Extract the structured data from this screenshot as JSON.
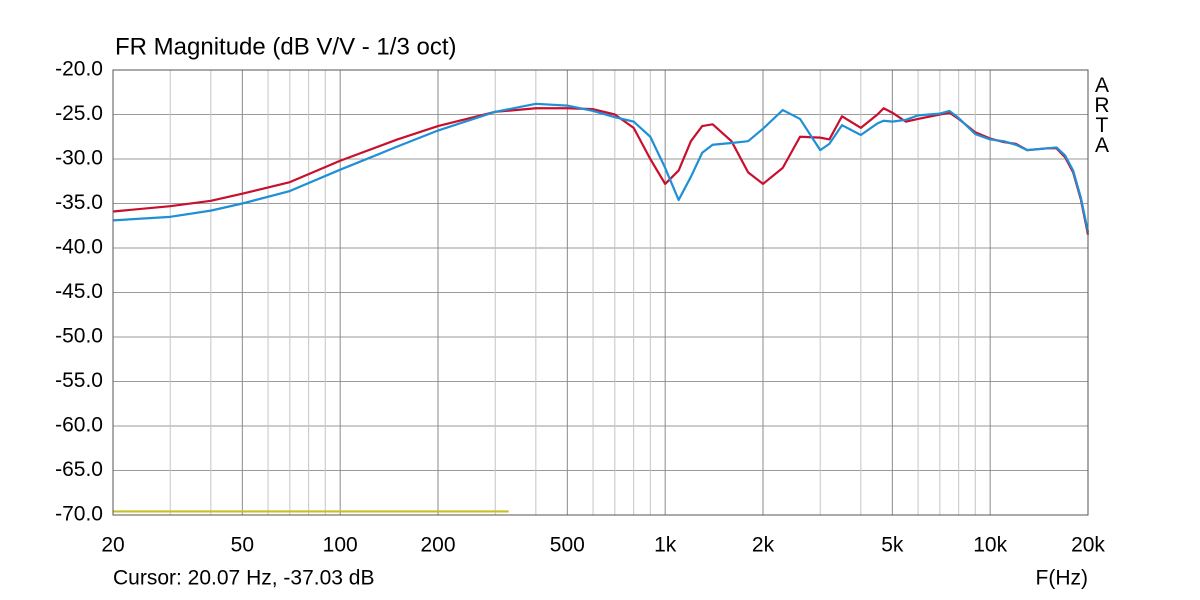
{
  "chart_data": {
    "type": "line",
    "title": "FR Magnitude (dB V/V - 1/3 oct)",
    "brand": "ARTA",
    "cursor": "Cursor: 20.07 Hz, -37.03 dB",
    "x_label": "F(Hz)",
    "log_x": true,
    "grid": true,
    "xlim": [
      20,
      20000
    ],
    "xticks": [
      20,
      50,
      100,
      200,
      500,
      {
        "value": 1000,
        "label": "1k"
      },
      {
        "value": 2000,
        "label": "2k"
      },
      {
        "value": 5000,
        "label": "5k"
      },
      {
        "value": 10000,
        "label": "10k"
      },
      {
        "value": 20000,
        "label": "20k"
      }
    ],
    "xgrid_minor": [
      30,
      40,
      60,
      70,
      80,
      90,
      300,
      400,
      600,
      700,
      800,
      900,
      3000,
      4000,
      6000,
      7000,
      8000,
      9000
    ],
    "ylim": [
      -70,
      -20
    ],
    "yticks": [
      {
        "value": -20,
        "label": "-20.0"
      },
      {
        "value": -25,
        "label": "-25.0"
      },
      {
        "value": -30,
        "label": "-30.0"
      },
      {
        "value": -35,
        "label": "-35.0"
      },
      {
        "value": -40,
        "label": "-40.0"
      },
      {
        "value": -45,
        "label": "-45.0"
      },
      {
        "value": -50,
        "label": "-50.0"
      },
      {
        "value": -55,
        "label": "-55.0"
      },
      {
        "value": -60,
        "label": "-60.0"
      },
      {
        "value": -65,
        "label": "-65.0"
      },
      {
        "value": -70,
        "label": "-70.0"
      }
    ],
    "x": [
      20,
      30,
      40,
      50,
      70,
      100,
      150,
      200,
      300,
      400,
      500,
      600,
      700,
      800,
      900,
      1000,
      1100,
      1200,
      1300,
      1400,
      1600,
      1800,
      2000,
      2300,
      2600,
      3000,
      3200,
      3500,
      4000,
      4500,
      4700,
      5000,
      5500,
      6000,
      7000,
      7500,
      8000,
      9000,
      10000,
      11000,
      12000,
      13000,
      15000,
      16000,
      17000,
      18000,
      19000,
      20000
    ],
    "series": [
      {
        "color": "#c8102e",
        "values": [
          -35.9,
          -35.3,
          -34.7,
          -33.9,
          -32.6,
          -30.2,
          -27.8,
          -26.3,
          -24.7,
          -24.3,
          -24.3,
          -24.4,
          -25.0,
          -26.5,
          -30.0,
          -32.8,
          -31.3,
          -28.0,
          -26.3,
          -26.1,
          -28.0,
          -31.5,
          -32.8,
          -31.0,
          -27.5,
          -27.6,
          -27.8,
          -25.2,
          -26.5,
          -25.0,
          -24.3,
          -24.8,
          -25.8,
          -25.5,
          -25.0,
          -24.8,
          -25.5,
          -27.0,
          -27.7,
          -28.1,
          -28.3,
          -29.0,
          -28.8,
          -28.8,
          -29.8,
          -31.5,
          -34.5,
          -38.5
        ]
      },
      {
        "color": "#1f8fd6",
        "values": [
          -36.9,
          -36.5,
          -35.8,
          -35.0,
          -33.6,
          -31.2,
          -28.6,
          -26.8,
          -24.7,
          -23.8,
          -24.0,
          -24.6,
          -25.3,
          -25.8,
          -27.5,
          -31.0,
          -34.6,
          -32.0,
          -29.3,
          -28.4,
          -28.2,
          -28.0,
          -26.6,
          -24.5,
          -25.5,
          -29.0,
          -28.3,
          -26.2,
          -27.3,
          -26.0,
          -25.7,
          -25.8,
          -25.6,
          -25.1,
          -24.9,
          -24.6,
          -25.4,
          -27.2,
          -27.8,
          -28.0,
          -28.4,
          -29.0,
          -28.8,
          -28.7,
          -29.6,
          -31.3,
          -34.3,
          -38.2
        ]
      },
      {
        "color": "#c8c020",
        "x": [
          20,
          330
        ],
        "values": [
          -69.6,
          -69.6
        ]
      }
    ]
  }
}
